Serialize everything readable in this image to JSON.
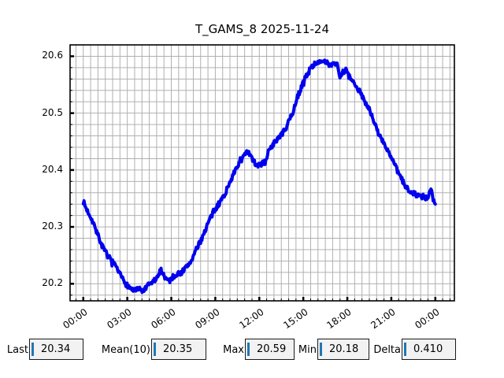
{
  "title": "T_GAMS_8 2025-11-24",
  "chart_data": {
    "type": "line",
    "title": "T_GAMS_8 2025-11-24",
    "xlabel": "",
    "ylabel": "",
    "xlim": [
      -0.9,
      25.3
    ],
    "ylim": [
      20.17,
      20.62
    ],
    "grid": true,
    "grid_color": "#b0b0b0",
    "x_ticks": {
      "hours": [
        0,
        3,
        6,
        9,
        12,
        15,
        18,
        21,
        24
      ],
      "labels": [
        "00:00",
        "03:00",
        "06:00",
        "09:00",
        "12:00",
        "15:00",
        "18:00",
        "21:00",
        "00:00"
      ],
      "minor_step_hours": 0.5
    },
    "y_ticks": {
      "values": [
        20.2,
        20.3,
        20.4,
        20.5,
        20.6
      ],
      "labels": [
        "20.2",
        "20.3",
        "20.4",
        "20.5",
        "20.6"
      ],
      "minor_step": 0.02
    },
    "series": [
      {
        "name": "T_GAMS_8",
        "color": "#0000ee",
        "points": [
          [
            0.0,
            20.345
          ],
          [
            0.2,
            20.332
          ],
          [
            0.5,
            20.318
          ],
          [
            0.8,
            20.3
          ],
          [
            1.1,
            20.278
          ],
          [
            1.4,
            20.26
          ],
          [
            1.7,
            20.248
          ],
          [
            2.0,
            20.238
          ],
          [
            2.3,
            20.225
          ],
          [
            2.6,
            20.212
          ],
          [
            2.9,
            20.2
          ],
          [
            3.2,
            20.192
          ],
          [
            3.5,
            20.188
          ],
          [
            3.8,
            20.19
          ],
          [
            4.1,
            20.187
          ],
          [
            4.4,
            20.196
          ],
          [
            4.8,
            20.205
          ],
          [
            5.05,
            20.21
          ],
          [
            5.3,
            20.225
          ],
          [
            5.6,
            20.21
          ],
          [
            5.85,
            20.205
          ],
          [
            6.25,
            20.215
          ],
          [
            6.7,
            20.22
          ],
          [
            7.05,
            20.23
          ],
          [
            7.35,
            20.24
          ],
          [
            7.7,
            20.26
          ],
          [
            8.0,
            20.275
          ],
          [
            8.4,
            20.3
          ],
          [
            8.65,
            20.315
          ],
          [
            9.0,
            20.33
          ],
          [
            9.35,
            20.345
          ],
          [
            9.7,
            20.36
          ],
          [
            10.0,
            20.38
          ],
          [
            10.4,
            20.4
          ],
          [
            10.7,
            20.418
          ],
          [
            11.0,
            20.425
          ],
          [
            11.2,
            20.432
          ],
          [
            11.5,
            20.42
          ],
          [
            11.75,
            20.41
          ],
          [
            12.0,
            20.408
          ],
          [
            12.4,
            20.414
          ],
          [
            12.7,
            20.438
          ],
          [
            13.1,
            20.45
          ],
          [
            13.5,
            20.462
          ],
          [
            13.8,
            20.472
          ],
          [
            14.1,
            20.49
          ],
          [
            14.4,
            20.51
          ],
          [
            14.6,
            20.528
          ],
          [
            14.9,
            20.548
          ],
          [
            15.2,
            20.566
          ],
          [
            15.6,
            20.582
          ],
          [
            15.9,
            20.59
          ],
          [
            16.2,
            20.588
          ],
          [
            16.5,
            20.59
          ],
          [
            16.8,
            20.585
          ],
          [
            17.1,
            20.589
          ],
          [
            17.35,
            20.585
          ],
          [
            17.5,
            20.563
          ],
          [
            17.7,
            20.572
          ],
          [
            17.9,
            20.575
          ],
          [
            18.1,
            20.565
          ],
          [
            18.4,
            20.553
          ],
          [
            18.8,
            20.54
          ],
          [
            19.1,
            20.525
          ],
          [
            19.5,
            20.508
          ],
          [
            19.8,
            20.485
          ],
          [
            20.2,
            20.46
          ],
          [
            20.5,
            20.447
          ],
          [
            20.75,
            20.435
          ],
          [
            21.1,
            20.415
          ],
          [
            21.5,
            20.394
          ],
          [
            22.0,
            20.369
          ],
          [
            22.4,
            20.362
          ],
          [
            22.7,
            20.357
          ],
          [
            23.0,
            20.353
          ],
          [
            23.3,
            20.35
          ],
          [
            23.55,
            20.352
          ],
          [
            23.7,
            20.37
          ],
          [
            23.85,
            20.345
          ],
          [
            24.0,
            20.34
          ]
        ]
      }
    ]
  },
  "stats": [
    {
      "label": "Last",
      "value": "20.34"
    },
    {
      "label": "Mean(10)",
      "value": "20.35"
    },
    {
      "label": "Max",
      "value": "20.59"
    },
    {
      "label": "Min",
      "value": "20.18"
    },
    {
      "label": "Delta",
      "value": "0.410"
    }
  ],
  "colors": {
    "curve": "#0000ee",
    "grid": "#b0b0b0",
    "spine": "#000000",
    "stat_box_bg": "#f2f2f2",
    "cursor_bar": "#1f77b4"
  }
}
